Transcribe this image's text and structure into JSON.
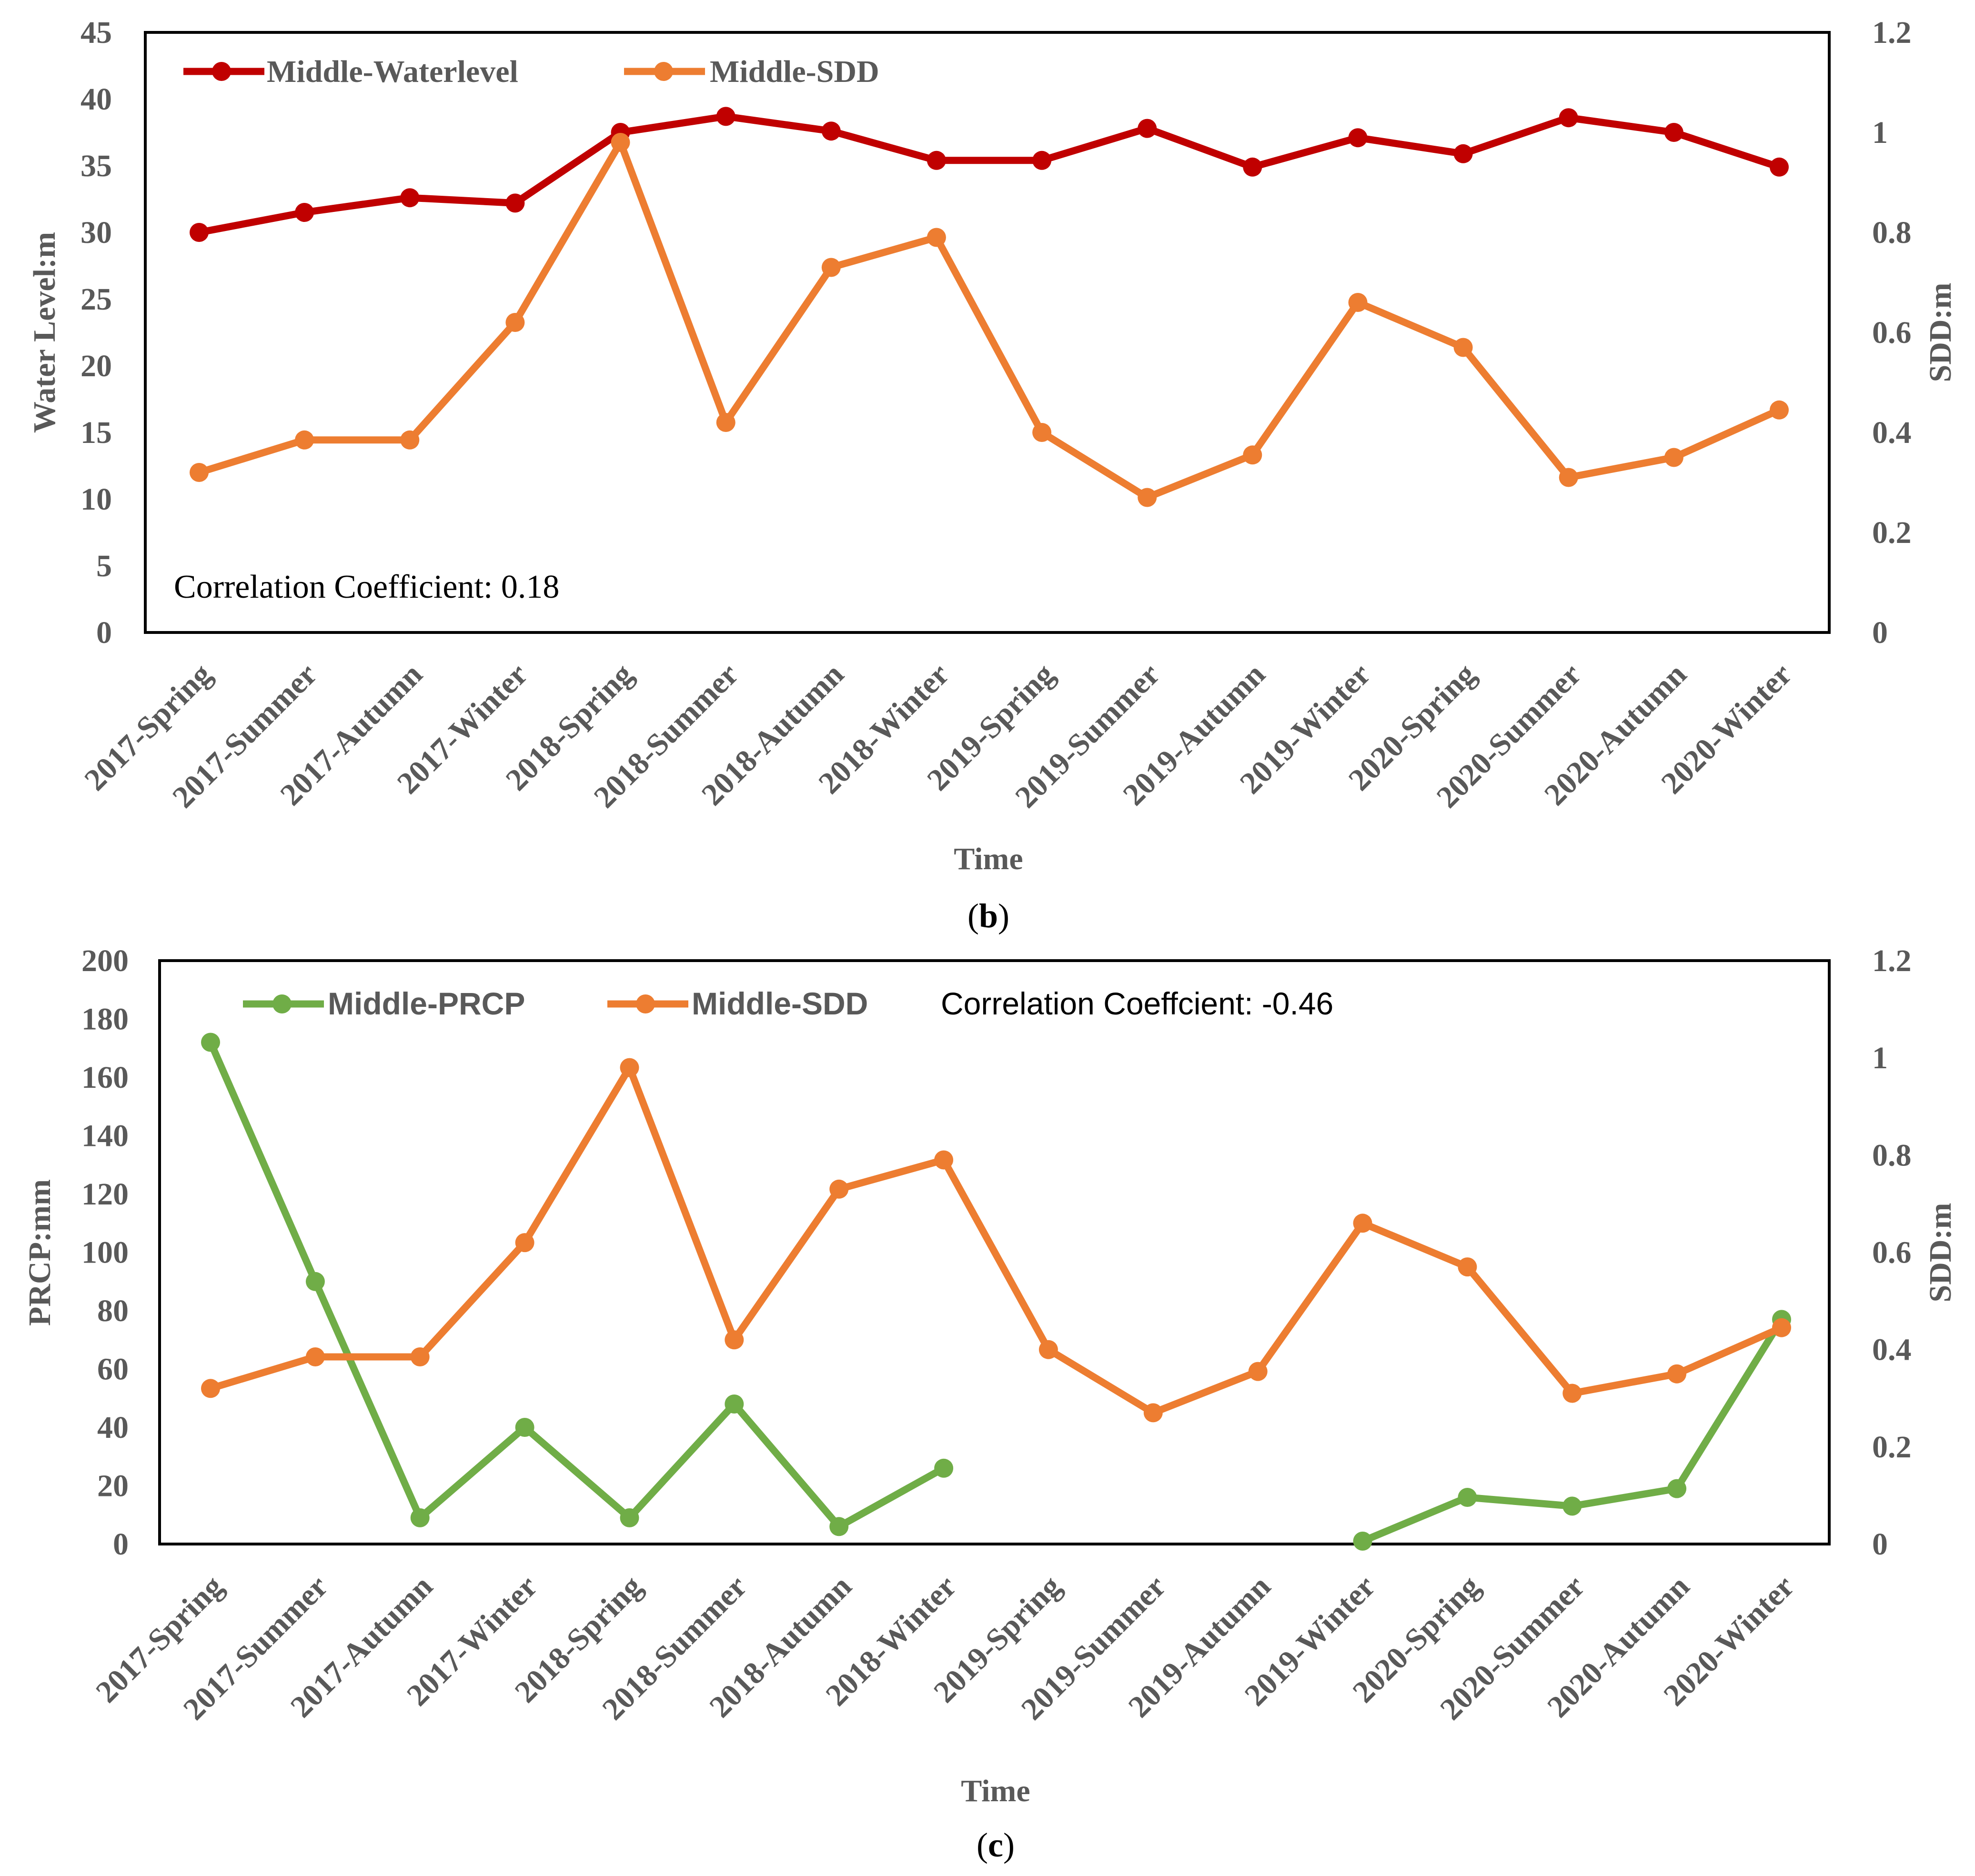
{
  "colors": {
    "waterlevel": "#C00000",
    "sdd": "#ED7D31",
    "prcp": "#70AD47",
    "frame": "#000000",
    "tick_text": "#595959"
  },
  "chart_data": [
    {
      "id": "b",
      "type": "line",
      "panel_label": "b",
      "categories": [
        "2017-Spring",
        "2017-Summer",
        "2017-Autumn",
        "2017-Winter",
        "2018-Spring",
        "2018-Summer",
        "2018-Autumn",
        "2018-Winter",
        "2019-Spring",
        "2019-Summer",
        "2019-Autumn",
        "2019-Winter",
        "2020-Spring",
        "2020-Summer",
        "2020-Autumn",
        "2020-Winter"
      ],
      "xlabel": "Time",
      "ylabel_left": "Water Level:m",
      "ylabel_right": "SDD:m",
      "ylim_left": [
        0,
        45
      ],
      "yticks_left": [
        0,
        5,
        10,
        15,
        20,
        25,
        30,
        35,
        40,
        45
      ],
      "ylim_right": [
        0,
        1.2
      ],
      "yticks_right": [
        "0",
        "0.2",
        "0.4",
        "0.6",
        "0.8",
        "1",
        "1.2"
      ],
      "legend_position": "top-left",
      "annotation": "Correlation Coefficient: 0.18",
      "series": [
        {
          "name": "Middle-Waterlevel",
          "axis": "left",
          "color": "#C00000",
          "values": [
            30.0,
            31.5,
            32.6,
            32.2,
            37.5,
            38.7,
            37.6,
            35.4,
            35.4,
            37.8,
            34.9,
            37.1,
            35.9,
            38.6,
            37.5,
            34.9
          ]
        },
        {
          "name": "Middle-SDD",
          "axis": "right",
          "color": "#ED7D31",
          "values": [
            0.32,
            0.385,
            0.385,
            0.62,
            0.98,
            0.42,
            0.73,
            0.79,
            0.4,
            0.27,
            0.355,
            0.66,
            0.57,
            0.31,
            0.35,
            0.445
          ]
        }
      ]
    },
    {
      "id": "c",
      "type": "line",
      "panel_label": "c",
      "categories": [
        "2017-Spring",
        "2017-Summer",
        "2017-Autumn",
        "2017-Winter",
        "2018-Spring",
        "2018-Summer",
        "2018-Autumn",
        "2018-Winter",
        "2019-Spring",
        "2019-Summer",
        "2019-Autumn",
        "2019-Winter",
        "2020-Spring",
        "2020-Summer",
        "2020-Autumn",
        "2020-Winter"
      ],
      "xlabel": "Time",
      "ylabel_left": "PRCP:mm",
      "ylabel_right": "SDD:m",
      "ylim_left": [
        0,
        200
      ],
      "yticks_left": [
        0,
        20,
        40,
        60,
        80,
        100,
        120,
        140,
        160,
        180,
        200
      ],
      "ylim_right": [
        0,
        1.2
      ],
      "yticks_right": [
        "0",
        "0.2",
        "0.4",
        "0.6",
        "0.8",
        "1",
        "1.2"
      ],
      "legend_position": "top-left",
      "annotation": "Correlation Coeffcient: -0.46",
      "series": [
        {
          "name": "Middle-PRCP",
          "axis": "left",
          "color": "#70AD47",
          "values": [
            172,
            90,
            9,
            40,
            9,
            48,
            6,
            26,
            null,
            null,
            null,
            1,
            16,
            13,
            19,
            77
          ]
        },
        {
          "name": "Middle-SDD",
          "axis": "right",
          "color": "#ED7D31",
          "values": [
            0.32,
            0.385,
            0.385,
            0.62,
            0.98,
            0.42,
            0.73,
            0.79,
            0.4,
            0.27,
            0.355,
            0.66,
            0.57,
            0.31,
            0.35,
            0.445
          ]
        }
      ]
    }
  ]
}
